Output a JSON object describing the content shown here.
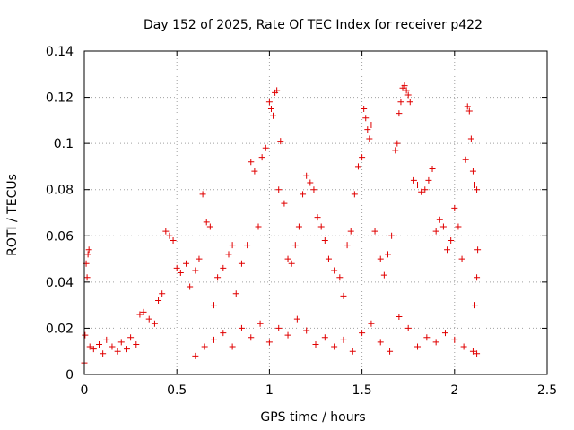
{
  "chart_data": {
    "type": "scatter",
    "title": "Day 152 of 2025, Rate Of TEC Index for receiver p422",
    "xlabel": "GPS time / hours",
    "ylabel": "ROTI / TECUs",
    "xlim": [
      0,
      2.5
    ],
    "ylim": [
      0,
      0.14
    ],
    "xticks": [
      0,
      0.5,
      1,
      1.5,
      2,
      2.5
    ],
    "xtick_labels": [
      "0",
      "0.5",
      "1",
      "1.5",
      "2",
      "2.5"
    ],
    "yticks": [
      0,
      0.02,
      0.04,
      0.06,
      0.08,
      0.1,
      0.12,
      0.14
    ],
    "ytick_labels": [
      "0",
      "0.02",
      "0.04",
      "0.06",
      "0.08",
      "0.1",
      "0.12",
      "0.14"
    ],
    "grid": true,
    "marker": "+",
    "color": "#e00000",
    "series": [
      {
        "name": "ROTI",
        "points": [
          [
            0.0,
            0.005
          ],
          [
            0.004,
            0.017
          ],
          [
            0.01,
            0.048
          ],
          [
            0.015,
            0.042
          ],
          [
            0.02,
            0.052
          ],
          [
            0.025,
            0.054
          ],
          [
            0.03,
            0.012
          ],
          [
            0.05,
            0.011
          ],
          [
            0.08,
            0.013
          ],
          [
            0.1,
            0.009
          ],
          [
            0.12,
            0.015
          ],
          [
            0.15,
            0.012
          ],
          [
            0.18,
            0.01
          ],
          [
            0.2,
            0.014
          ],
          [
            0.23,
            0.011
          ],
          [
            0.25,
            0.016
          ],
          [
            0.28,
            0.013
          ],
          [
            0.3,
            0.026
          ],
          [
            0.32,
            0.027
          ],
          [
            0.35,
            0.024
          ],
          [
            0.38,
            0.022
          ],
          [
            0.4,
            0.032
          ],
          [
            0.42,
            0.035
          ],
          [
            0.44,
            0.062
          ],
          [
            0.46,
            0.06
          ],
          [
            0.48,
            0.058
          ],
          [
            0.5,
            0.046
          ],
          [
            0.52,
            0.044
          ],
          [
            0.55,
            0.048
          ],
          [
            0.57,
            0.038
          ],
          [
            0.6,
            0.045
          ],
          [
            0.62,
            0.05
          ],
          [
            0.64,
            0.078
          ],
          [
            0.66,
            0.066
          ],
          [
            0.68,
            0.064
          ],
          [
            0.7,
            0.03
          ],
          [
            0.72,
            0.042
          ],
          [
            0.75,
            0.046
          ],
          [
            0.78,
            0.052
          ],
          [
            0.8,
            0.056
          ],
          [
            0.82,
            0.035
          ],
          [
            0.85,
            0.048
          ],
          [
            0.88,
            0.056
          ],
          [
            0.9,
            0.092
          ],
          [
            0.92,
            0.088
          ],
          [
            0.94,
            0.064
          ],
          [
            0.96,
            0.094
          ],
          [
            0.98,
            0.098
          ],
          [
            1.0,
            0.118
          ],
          [
            1.01,
            0.115
          ],
          [
            1.02,
            0.112
          ],
          [
            1.03,
            0.122
          ],
          [
            1.04,
            0.123
          ],
          [
            1.05,
            0.08
          ],
          [
            1.06,
            0.101
          ],
          [
            1.08,
            0.074
          ],
          [
            1.1,
            0.05
          ],
          [
            1.12,
            0.048
          ],
          [
            1.14,
            0.056
          ],
          [
            1.16,
            0.064
          ],
          [
            1.18,
            0.078
          ],
          [
            1.2,
            0.086
          ],
          [
            1.22,
            0.083
          ],
          [
            1.24,
            0.08
          ],
          [
            1.26,
            0.068
          ],
          [
            1.28,
            0.064
          ],
          [
            1.3,
            0.058
          ],
          [
            1.32,
            0.05
          ],
          [
            1.35,
            0.045
          ],
          [
            1.38,
            0.042
          ],
          [
            1.4,
            0.034
          ],
          [
            1.42,
            0.056
          ],
          [
            1.44,
            0.062
          ],
          [
            1.46,
            0.078
          ],
          [
            1.48,
            0.09
          ],
          [
            1.5,
            0.094
          ],
          [
            1.51,
            0.115
          ],
          [
            1.52,
            0.111
          ],
          [
            1.53,
            0.106
          ],
          [
            1.54,
            0.102
          ],
          [
            1.55,
            0.108
          ],
          [
            1.57,
            0.062
          ],
          [
            1.6,
            0.05
          ],
          [
            1.62,
            0.043
          ],
          [
            1.64,
            0.052
          ],
          [
            1.66,
            0.06
          ],
          [
            1.68,
            0.097
          ],
          [
            1.69,
            0.1
          ],
          [
            1.7,
            0.113
          ],
          [
            1.71,
            0.118
          ],
          [
            1.72,
            0.124
          ],
          [
            1.73,
            0.125
          ],
          [
            1.74,
            0.123
          ],
          [
            1.75,
            0.121
          ],
          [
            1.76,
            0.118
          ],
          [
            1.78,
            0.084
          ],
          [
            1.8,
            0.082
          ],
          [
            1.82,
            0.079
          ],
          [
            1.84,
            0.08
          ],
          [
            1.86,
            0.084
          ],
          [
            1.88,
            0.089
          ],
          [
            1.9,
            0.062
          ],
          [
            1.92,
            0.067
          ],
          [
            1.94,
            0.064
          ],
          [
            1.96,
            0.054
          ],
          [
            1.98,
            0.058
          ],
          [
            2.0,
            0.072
          ],
          [
            2.02,
            0.064
          ],
          [
            2.04,
            0.05
          ],
          [
            2.06,
            0.093
          ],
          [
            2.07,
            0.116
          ],
          [
            2.08,
            0.114
          ],
          [
            2.09,
            0.102
          ],
          [
            2.1,
            0.088
          ],
          [
            2.11,
            0.082
          ],
          [
            2.12,
            0.08
          ],
          [
            2.125,
            0.054
          ],
          [
            2.12,
            0.042
          ],
          [
            2.11,
            0.03
          ],
          [
            0.6,
            0.008
          ],
          [
            0.65,
            0.012
          ],
          [
            0.7,
            0.015
          ],
          [
            0.75,
            0.018
          ],
          [
            0.8,
            0.012
          ],
          [
            0.85,
            0.02
          ],
          [
            0.9,
            0.016
          ],
          [
            0.95,
            0.022
          ],
          [
            1.0,
            0.014
          ],
          [
            1.05,
            0.02
          ],
          [
            1.1,
            0.017
          ],
          [
            1.15,
            0.024
          ],
          [
            1.2,
            0.019
          ],
          [
            1.25,
            0.013
          ],
          [
            1.3,
            0.016
          ],
          [
            1.35,
            0.012
          ],
          [
            1.4,
            0.015
          ],
          [
            1.45,
            0.01
          ],
          [
            1.5,
            0.018
          ],
          [
            1.55,
            0.022
          ],
          [
            1.6,
            0.014
          ],
          [
            1.65,
            0.01
          ],
          [
            1.7,
            0.025
          ],
          [
            1.75,
            0.02
          ],
          [
            1.8,
            0.012
          ],
          [
            1.85,
            0.016
          ],
          [
            1.9,
            0.014
          ],
          [
            1.95,
            0.018
          ],
          [
            2.0,
            0.015
          ],
          [
            2.05,
            0.012
          ],
          [
            2.1,
            0.01
          ],
          [
            2.12,
            0.009
          ]
        ]
      }
    ]
  }
}
